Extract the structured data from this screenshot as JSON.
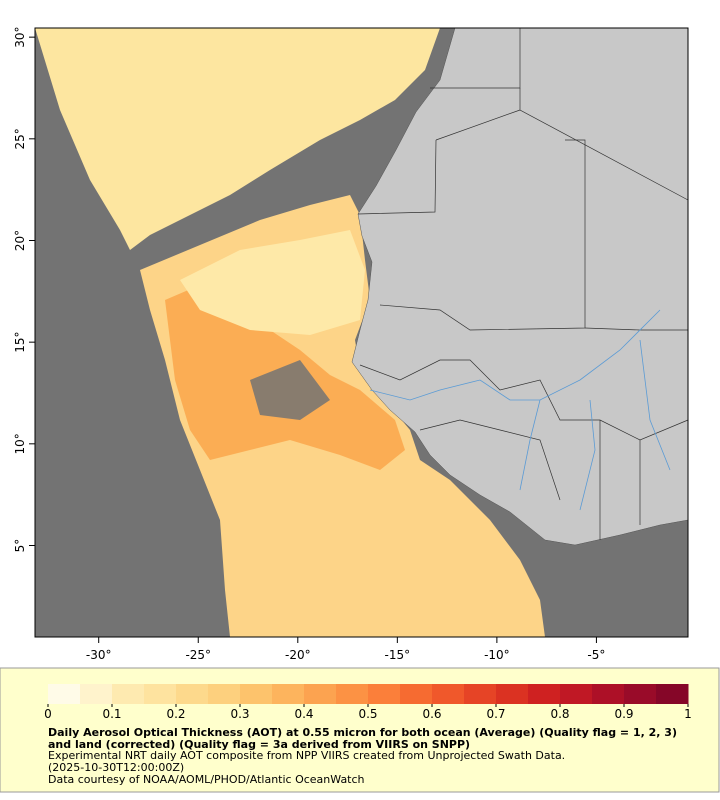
{
  "map": {
    "xlim": [
      -33.2,
      -0.4
    ],
    "ylim": [
      0.5,
      30.45
    ],
    "xticks": [
      {
        "value": -30,
        "label": "-30°"
      },
      {
        "value": -25,
        "label": "-25°"
      },
      {
        "value": -20,
        "label": "-20°"
      },
      {
        "value": -15,
        "label": "-15°"
      },
      {
        "value": -10,
        "label": "-10°"
      },
      {
        "value": -5,
        "label": "-5°"
      }
    ],
    "yticks": [
      {
        "value": 30,
        "label": "30°"
      },
      {
        "value": 25,
        "label": "25°"
      },
      {
        "value": 20,
        "label": "20°"
      },
      {
        "value": 15,
        "label": "15°"
      },
      {
        "value": 10,
        "label": "10°"
      },
      {
        "value": 5,
        "label": "5°"
      }
    ]
  },
  "colorbar": {
    "lim": [
      0,
      1
    ],
    "ticks": [
      0,
      0.1,
      0.2,
      0.3,
      0.4,
      0.5,
      0.6,
      0.7,
      0.8,
      0.9,
      1
    ],
    "colors": [
      "#fffbe8",
      "#fff3cc",
      "#feeab0",
      "#fee39f",
      "#fdd98c",
      "#fdd07e",
      "#fdc36c",
      "#fdb45d",
      "#fca350",
      "#fc9244",
      "#fb7f3a",
      "#f66b31",
      "#f0582b",
      "#e64426",
      "#db3222",
      "#cf2121",
      "#c01825",
      "#ad1027",
      "#990b29",
      "#850628"
    ]
  },
  "caption": {
    "title": "Daily Aerosol Optical Thickness (AOT) at 0.55 micron for both ocean (Average) (Quality flag = 1, 2, 3) and land (corrected) (Quality flag = 3a derived from VIIRS on SNPP)",
    "line1": "Experimental NRT daily AOT composite from NPP VIIRS created from Unprojected Swath Data.",
    "line2": "(2025-10-30T12:00:00Z)",
    "line3": "Data courtesy of NOAA/AOML/PHOD/Atlantic OceanWatch"
  }
}
